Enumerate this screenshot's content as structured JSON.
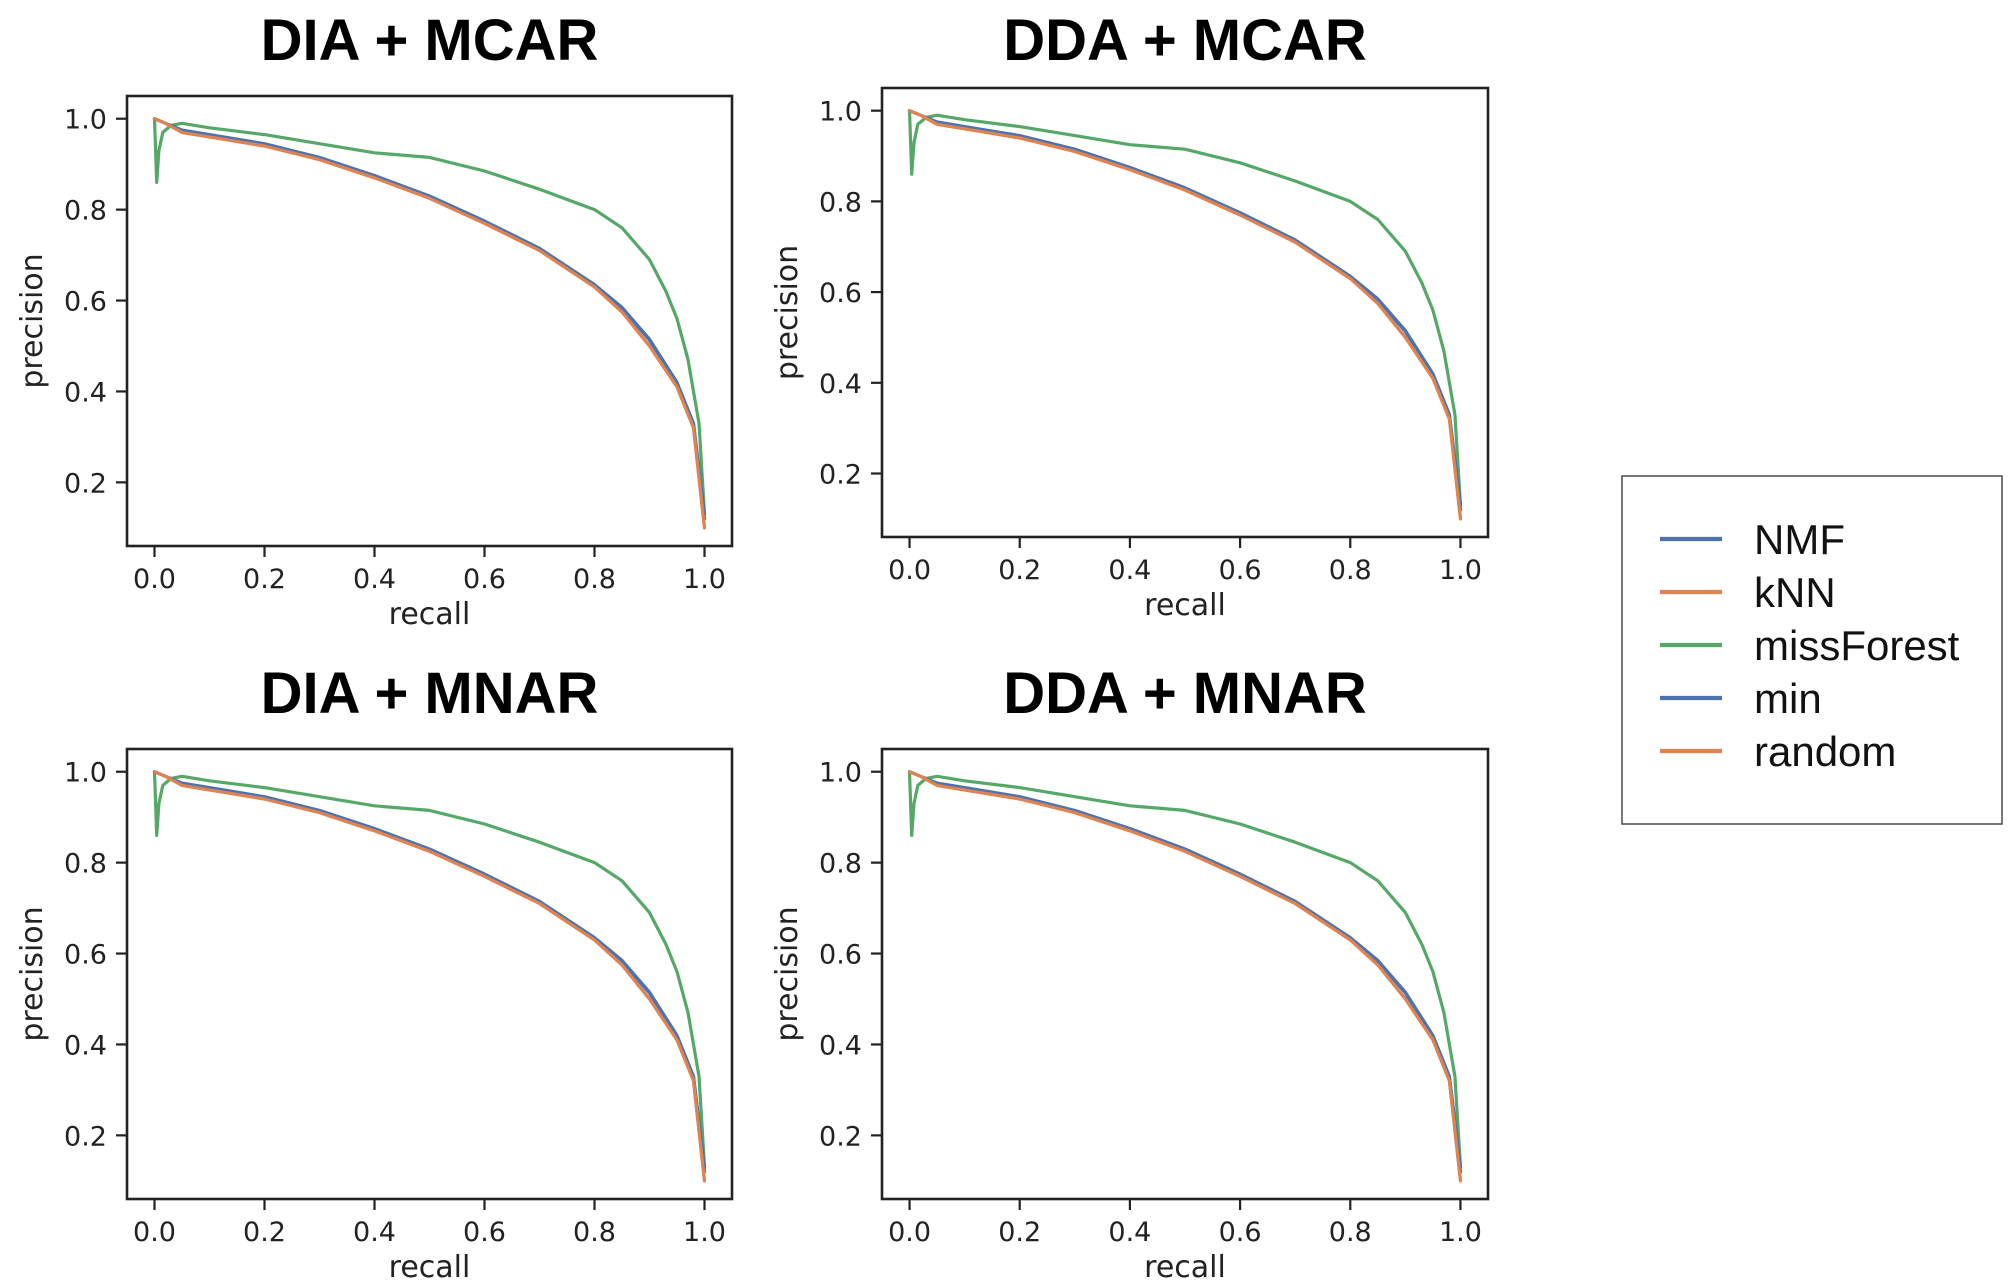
{
  "chart_data": [
    {
      "type": "line",
      "title": "DIA + MCAR",
      "xlabel": "recall",
      "ylabel": "precision",
      "xlim": [
        -0.05,
        1.05
      ],
      "ylim": [
        0.06,
        1.05
      ],
      "xticks": [
        "0.0",
        "0.2",
        "0.4",
        "0.6",
        "0.8",
        "1.0"
      ],
      "yticks": [
        "0.2",
        "0.4",
        "0.6",
        "0.8",
        "1.0"
      ],
      "grid": false,
      "series": [
        {
          "name": "NMF",
          "color": "#4c72b0",
          "x": [
            0,
            0.02,
            0.05,
            0.1,
            0.2,
            0.3,
            0.4,
            0.5,
            0.6,
            0.7,
            0.8,
            0.85,
            0.9,
            0.95,
            0.98,
            1.0
          ],
          "y": [
            1.0,
            0.99,
            0.975,
            0.965,
            0.945,
            0.915,
            0.875,
            0.83,
            0.775,
            0.715,
            0.635,
            0.585,
            0.515,
            0.42,
            0.33,
            0.13
          ]
        },
        {
          "name": "kNN",
          "color": "#dd8452",
          "x": [
            0,
            0.02,
            0.05,
            0.1,
            0.2,
            0.3,
            0.4,
            0.5,
            0.6,
            0.7,
            0.8,
            0.85,
            0.9,
            0.95,
            0.98,
            1.0
          ],
          "y": [
            1.0,
            0.99,
            0.97,
            0.96,
            0.94,
            0.91,
            0.87,
            0.825,
            0.77,
            0.71,
            0.63,
            0.575,
            0.5,
            0.41,
            0.32,
            0.1
          ]
        },
        {
          "name": "missForest",
          "color": "#55a868",
          "x": [
            0,
            0.004,
            0.008,
            0.015,
            0.03,
            0.05,
            0.1,
            0.2,
            0.3,
            0.4,
            0.5,
            0.6,
            0.7,
            0.8,
            0.85,
            0.9,
            0.93,
            0.95,
            0.97,
            0.99,
            1.0
          ],
          "y": [
            1.0,
            0.86,
            0.93,
            0.97,
            0.985,
            0.99,
            0.98,
            0.965,
            0.945,
            0.925,
            0.915,
            0.885,
            0.845,
            0.8,
            0.76,
            0.69,
            0.62,
            0.56,
            0.47,
            0.33,
            0.13
          ]
        },
        {
          "name": "min",
          "color": "#4c72b0",
          "x": [
            0,
            0.02,
            0.05,
            0.1,
            0.2,
            0.3,
            0.4,
            0.5,
            0.6,
            0.7,
            0.8,
            0.85,
            0.9,
            0.95,
            0.98,
            1.0
          ],
          "y": [
            1.0,
            0.99,
            0.974,
            0.964,
            0.944,
            0.914,
            0.874,
            0.829,
            0.774,
            0.714,
            0.634,
            0.583,
            0.513,
            0.418,
            0.328,
            0.12
          ]
        },
        {
          "name": "random",
          "color": "#dd8452",
          "x": [
            0,
            0.02,
            0.05,
            0.1,
            0.2,
            0.3,
            0.4,
            0.5,
            0.6,
            0.7,
            0.8,
            0.85,
            0.9,
            0.95,
            0.98,
            1.0
          ],
          "y": [
            1.0,
            0.99,
            0.97,
            0.96,
            0.94,
            0.91,
            0.87,
            0.825,
            0.77,
            0.71,
            0.63,
            0.575,
            0.5,
            0.41,
            0.32,
            0.1
          ]
        }
      ]
    },
    {
      "type": "line",
      "title": "DDA + MCAR",
      "xlabel": "recall",
      "ylabel": "precision",
      "xlim": [
        -0.05,
        1.05
      ],
      "ylim": [
        0.06,
        1.05
      ],
      "xticks": [
        "0.0",
        "0.2",
        "0.4",
        "0.6",
        "0.8",
        "1.0"
      ],
      "yticks": [
        "0.2",
        "0.4",
        "0.6",
        "0.8",
        "1.0"
      ],
      "grid": false,
      "series": [
        {
          "name": "NMF",
          "color": "#4c72b0",
          "x": [
            0,
            0.02,
            0.05,
            0.1,
            0.2,
            0.3,
            0.4,
            0.5,
            0.6,
            0.7,
            0.8,
            0.85,
            0.9,
            0.95,
            0.98,
            1.0
          ],
          "y": [
            1.0,
            0.99,
            0.975,
            0.965,
            0.945,
            0.915,
            0.875,
            0.83,
            0.775,
            0.715,
            0.635,
            0.585,
            0.515,
            0.42,
            0.33,
            0.13
          ]
        },
        {
          "name": "kNN",
          "color": "#dd8452",
          "x": [
            0,
            0.02,
            0.05,
            0.1,
            0.2,
            0.3,
            0.4,
            0.5,
            0.6,
            0.7,
            0.8,
            0.85,
            0.9,
            0.95,
            0.98,
            1.0
          ],
          "y": [
            1.0,
            0.99,
            0.97,
            0.96,
            0.94,
            0.91,
            0.87,
            0.825,
            0.77,
            0.71,
            0.63,
            0.575,
            0.5,
            0.41,
            0.32,
            0.1
          ]
        },
        {
          "name": "missForest",
          "color": "#55a868",
          "x": [
            0,
            0.004,
            0.008,
            0.015,
            0.03,
            0.05,
            0.1,
            0.2,
            0.3,
            0.4,
            0.5,
            0.6,
            0.7,
            0.8,
            0.85,
            0.9,
            0.93,
            0.95,
            0.97,
            0.99,
            1.0
          ],
          "y": [
            1.0,
            0.86,
            0.93,
            0.97,
            0.985,
            0.99,
            0.98,
            0.965,
            0.945,
            0.925,
            0.915,
            0.885,
            0.845,
            0.8,
            0.76,
            0.69,
            0.62,
            0.56,
            0.47,
            0.33,
            0.13
          ]
        },
        {
          "name": "min",
          "color": "#4c72b0",
          "x": [
            0,
            0.02,
            0.05,
            0.1,
            0.2,
            0.3,
            0.4,
            0.5,
            0.6,
            0.7,
            0.8,
            0.85,
            0.9,
            0.95,
            0.98,
            1.0
          ],
          "y": [
            1.0,
            0.99,
            0.974,
            0.964,
            0.944,
            0.914,
            0.874,
            0.829,
            0.774,
            0.714,
            0.634,
            0.583,
            0.513,
            0.418,
            0.328,
            0.12
          ]
        },
        {
          "name": "random",
          "color": "#dd8452",
          "x": [
            0,
            0.02,
            0.05,
            0.1,
            0.2,
            0.3,
            0.4,
            0.5,
            0.6,
            0.7,
            0.8,
            0.85,
            0.9,
            0.95,
            0.98,
            1.0
          ],
          "y": [
            1.0,
            0.99,
            0.97,
            0.96,
            0.94,
            0.91,
            0.87,
            0.825,
            0.77,
            0.71,
            0.63,
            0.575,
            0.5,
            0.41,
            0.32,
            0.1
          ]
        }
      ]
    },
    {
      "type": "line",
      "title": "DIA + MNAR",
      "xlabel": "recall",
      "ylabel": "precision",
      "xlim": [
        -0.05,
        1.05
      ],
      "ylim": [
        0.06,
        1.05
      ],
      "xticks": [
        "0.0",
        "0.2",
        "0.4",
        "0.6",
        "0.8",
        "1.0"
      ],
      "yticks": [
        "0.2",
        "0.4",
        "0.6",
        "0.8",
        "1.0"
      ],
      "grid": false,
      "series": [
        {
          "name": "NMF",
          "color": "#4c72b0",
          "x": [
            0,
            0.02,
            0.05,
            0.1,
            0.2,
            0.3,
            0.4,
            0.5,
            0.6,
            0.7,
            0.8,
            0.85,
            0.9,
            0.95,
            0.98,
            1.0
          ],
          "y": [
            1.0,
            0.99,
            0.975,
            0.965,
            0.945,
            0.915,
            0.875,
            0.83,
            0.775,
            0.715,
            0.635,
            0.585,
            0.515,
            0.42,
            0.33,
            0.13
          ]
        },
        {
          "name": "kNN",
          "color": "#dd8452",
          "x": [
            0,
            0.02,
            0.05,
            0.1,
            0.2,
            0.3,
            0.4,
            0.5,
            0.6,
            0.7,
            0.8,
            0.85,
            0.9,
            0.95,
            0.98,
            1.0
          ],
          "y": [
            1.0,
            0.99,
            0.97,
            0.96,
            0.94,
            0.91,
            0.87,
            0.825,
            0.77,
            0.71,
            0.63,
            0.575,
            0.5,
            0.41,
            0.32,
            0.1
          ]
        },
        {
          "name": "missForest",
          "color": "#55a868",
          "x": [
            0,
            0.004,
            0.008,
            0.015,
            0.03,
            0.05,
            0.1,
            0.2,
            0.3,
            0.4,
            0.5,
            0.6,
            0.7,
            0.8,
            0.85,
            0.9,
            0.93,
            0.95,
            0.97,
            0.99,
            1.0
          ],
          "y": [
            1.0,
            0.86,
            0.93,
            0.97,
            0.985,
            0.99,
            0.98,
            0.965,
            0.945,
            0.925,
            0.915,
            0.885,
            0.845,
            0.8,
            0.76,
            0.69,
            0.62,
            0.56,
            0.47,
            0.33,
            0.13
          ]
        },
        {
          "name": "min",
          "color": "#4c72b0",
          "x": [
            0,
            0.02,
            0.05,
            0.1,
            0.2,
            0.3,
            0.4,
            0.5,
            0.6,
            0.7,
            0.8,
            0.85,
            0.9,
            0.95,
            0.98,
            1.0
          ],
          "y": [
            1.0,
            0.99,
            0.974,
            0.964,
            0.944,
            0.914,
            0.874,
            0.829,
            0.774,
            0.714,
            0.634,
            0.583,
            0.513,
            0.418,
            0.328,
            0.12
          ]
        },
        {
          "name": "random",
          "color": "#dd8452",
          "x": [
            0,
            0.02,
            0.05,
            0.1,
            0.2,
            0.3,
            0.4,
            0.5,
            0.6,
            0.7,
            0.8,
            0.85,
            0.9,
            0.95,
            0.98,
            1.0
          ],
          "y": [
            1.0,
            0.99,
            0.97,
            0.96,
            0.94,
            0.91,
            0.87,
            0.825,
            0.77,
            0.71,
            0.63,
            0.575,
            0.5,
            0.41,
            0.32,
            0.1
          ]
        }
      ]
    },
    {
      "type": "line",
      "title": "DDA + MNAR",
      "xlabel": "recall",
      "ylabel": "precision",
      "xlim": [
        -0.05,
        1.05
      ],
      "ylim": [
        0.06,
        1.05
      ],
      "xticks": [
        "0.0",
        "0.2",
        "0.4",
        "0.6",
        "0.8",
        "1.0"
      ],
      "yticks": [
        "0.2",
        "0.4",
        "0.6",
        "0.8",
        "1.0"
      ],
      "grid": false,
      "series": [
        {
          "name": "NMF",
          "color": "#4c72b0",
          "x": [
            0,
            0.02,
            0.05,
            0.1,
            0.2,
            0.3,
            0.4,
            0.5,
            0.6,
            0.7,
            0.8,
            0.85,
            0.9,
            0.95,
            0.98,
            1.0
          ],
          "y": [
            1.0,
            0.99,
            0.975,
            0.965,
            0.945,
            0.915,
            0.875,
            0.83,
            0.775,
            0.715,
            0.635,
            0.585,
            0.515,
            0.42,
            0.33,
            0.13
          ]
        },
        {
          "name": "kNN",
          "color": "#dd8452",
          "x": [
            0,
            0.02,
            0.05,
            0.1,
            0.2,
            0.3,
            0.4,
            0.5,
            0.6,
            0.7,
            0.8,
            0.85,
            0.9,
            0.95,
            0.98,
            1.0
          ],
          "y": [
            1.0,
            0.99,
            0.97,
            0.96,
            0.94,
            0.91,
            0.87,
            0.825,
            0.77,
            0.71,
            0.63,
            0.575,
            0.5,
            0.41,
            0.32,
            0.1
          ]
        },
        {
          "name": "missForest",
          "color": "#55a868",
          "x": [
            0,
            0.004,
            0.008,
            0.015,
            0.03,
            0.05,
            0.1,
            0.2,
            0.3,
            0.4,
            0.5,
            0.6,
            0.7,
            0.8,
            0.85,
            0.9,
            0.93,
            0.95,
            0.97,
            0.99,
            1.0
          ],
          "y": [
            1.0,
            0.86,
            0.93,
            0.97,
            0.985,
            0.99,
            0.98,
            0.965,
            0.945,
            0.925,
            0.915,
            0.885,
            0.845,
            0.8,
            0.76,
            0.69,
            0.62,
            0.56,
            0.47,
            0.33,
            0.13
          ]
        },
        {
          "name": "min",
          "color": "#4c72b0",
          "x": [
            0,
            0.02,
            0.05,
            0.1,
            0.2,
            0.3,
            0.4,
            0.5,
            0.6,
            0.7,
            0.8,
            0.85,
            0.9,
            0.95,
            0.98,
            1.0
          ],
          "y": [
            1.0,
            0.99,
            0.974,
            0.964,
            0.944,
            0.914,
            0.874,
            0.829,
            0.774,
            0.714,
            0.634,
            0.583,
            0.513,
            0.418,
            0.328,
            0.12
          ]
        },
        {
          "name": "random",
          "color": "#dd8452",
          "x": [
            0,
            0.02,
            0.05,
            0.1,
            0.2,
            0.3,
            0.4,
            0.5,
            0.6,
            0.7,
            0.8,
            0.85,
            0.9,
            0.95,
            0.98,
            1.0
          ],
          "y": [
            1.0,
            0.99,
            0.97,
            0.96,
            0.94,
            0.91,
            0.87,
            0.825,
            0.77,
            0.71,
            0.63,
            0.575,
            0.5,
            0.41,
            0.32,
            0.1
          ]
        }
      ]
    }
  ],
  "legend": {
    "placement": "center-right",
    "entries": [
      {
        "label": "NMF",
        "color": "#4c72b0"
      },
      {
        "label": "kNN",
        "color": "#dd8452"
      },
      {
        "label": "missForest",
        "color": "#55a868"
      },
      {
        "label": "min",
        "color": "#4c72b0"
      },
      {
        "label": "random",
        "color": "#dd8452"
      }
    ]
  }
}
